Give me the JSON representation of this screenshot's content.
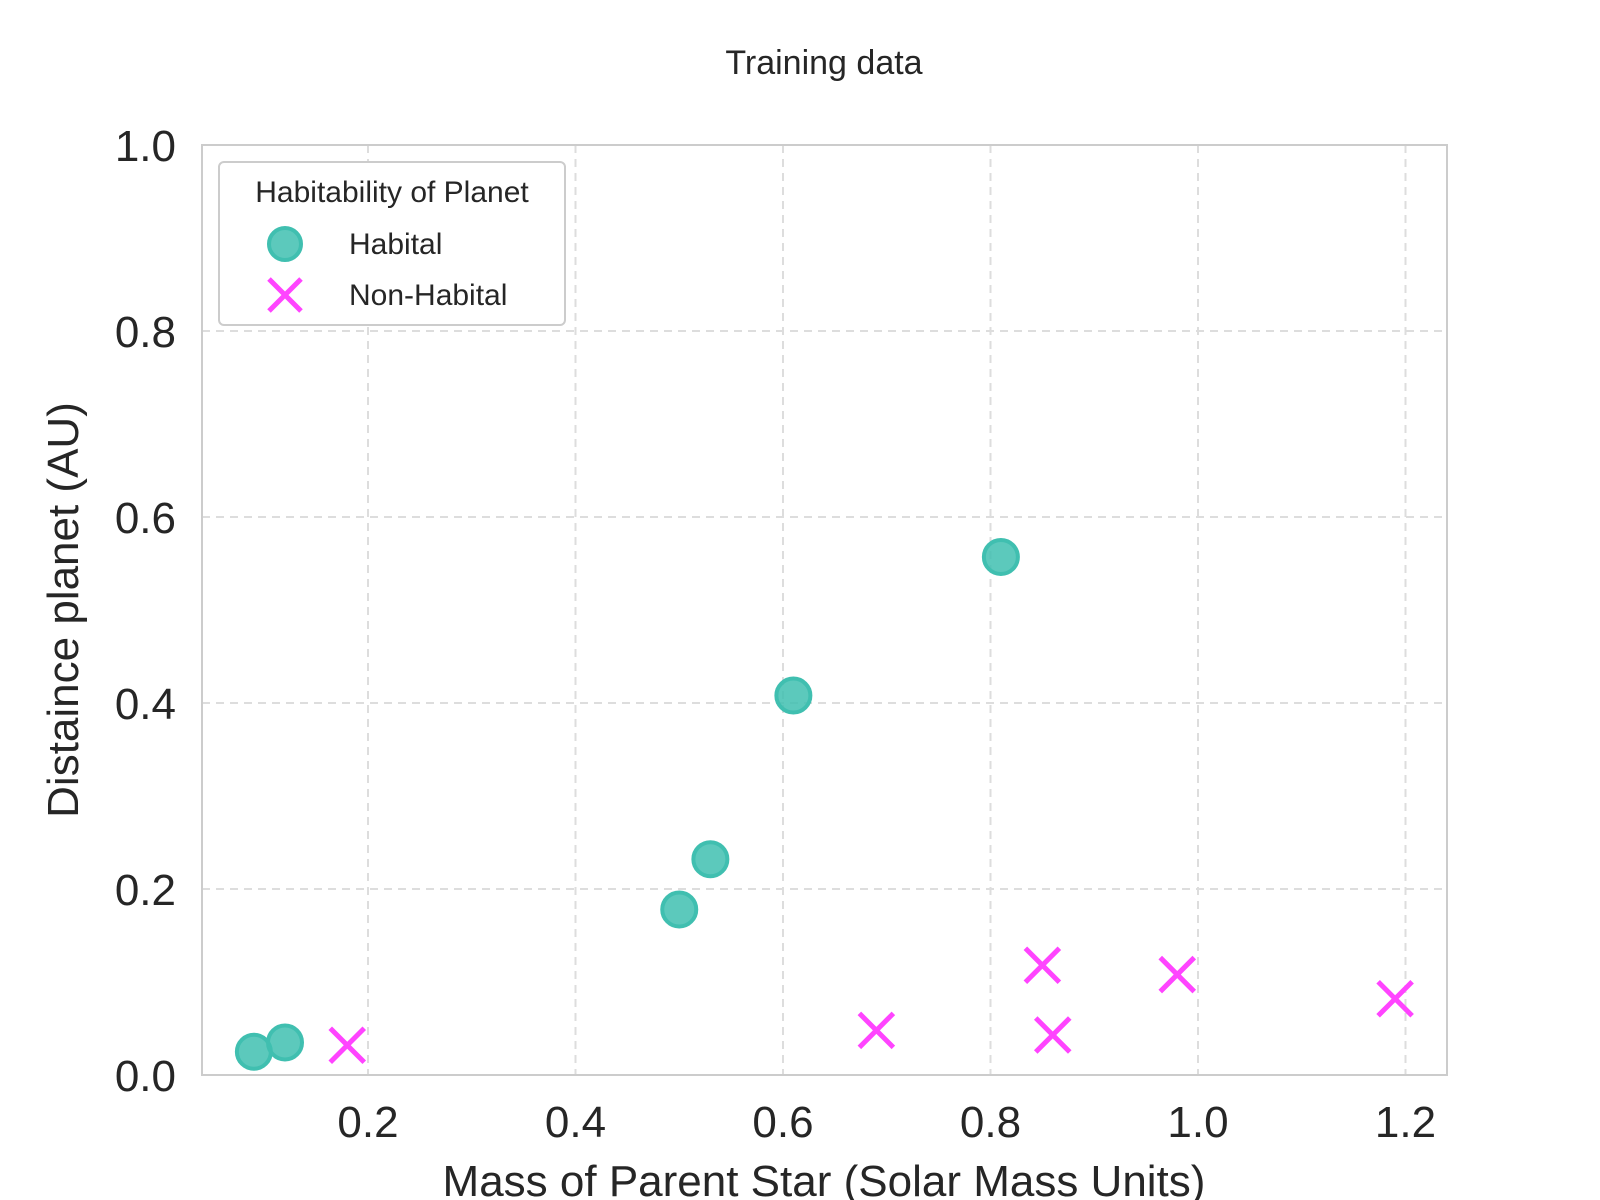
{
  "chart_data": {
    "type": "scatter",
    "title": "Training data",
    "xlabel": "Mass of Parent Star (Solar Mass Units)",
    "ylabel": "Distaince planet (AU)",
    "xlim": [
      0.04,
      1.24
    ],
    "ylim": [
      0.0,
      1.0
    ],
    "xticks": [
      0.2,
      0.4,
      0.6,
      0.8,
      1.0,
      1.2
    ],
    "xtick_labels": [
      "0.2",
      "0.4",
      "0.6",
      "0.8",
      "1.0",
      "1.2"
    ],
    "yticks": [
      0.0,
      0.2,
      0.4,
      0.6,
      0.8,
      1.0
    ],
    "ytick_labels": [
      "0.0",
      "0.2",
      "0.4",
      "0.6",
      "0.8",
      "1.0"
    ],
    "grid": true,
    "legend": {
      "title": "Habitability of Planet",
      "placement": "top-left"
    },
    "series": [
      {
        "name": "Habital",
        "marker": "circle",
        "color": "#40bfb0",
        "points": [
          {
            "x": 0.09,
            "y": 0.025
          },
          {
            "x": 0.12,
            "y": 0.035
          },
          {
            "x": 0.5,
            "y": 0.178
          },
          {
            "x": 0.53,
            "y": 0.232
          },
          {
            "x": 0.61,
            "y": 0.408
          },
          {
            "x": 0.81,
            "y": 0.557
          }
        ]
      },
      {
        "name": "Non-Habital",
        "marker": "x",
        "color": "#ff44ff",
        "points": [
          {
            "x": 0.18,
            "y": 0.032
          },
          {
            "x": 0.69,
            "y": 0.048
          },
          {
            "x": 0.85,
            "y": 0.118
          },
          {
            "x": 0.86,
            "y": 0.043
          },
          {
            "x": 0.98,
            "y": 0.108
          },
          {
            "x": 1.19,
            "y": 0.082
          }
        ]
      }
    ]
  }
}
